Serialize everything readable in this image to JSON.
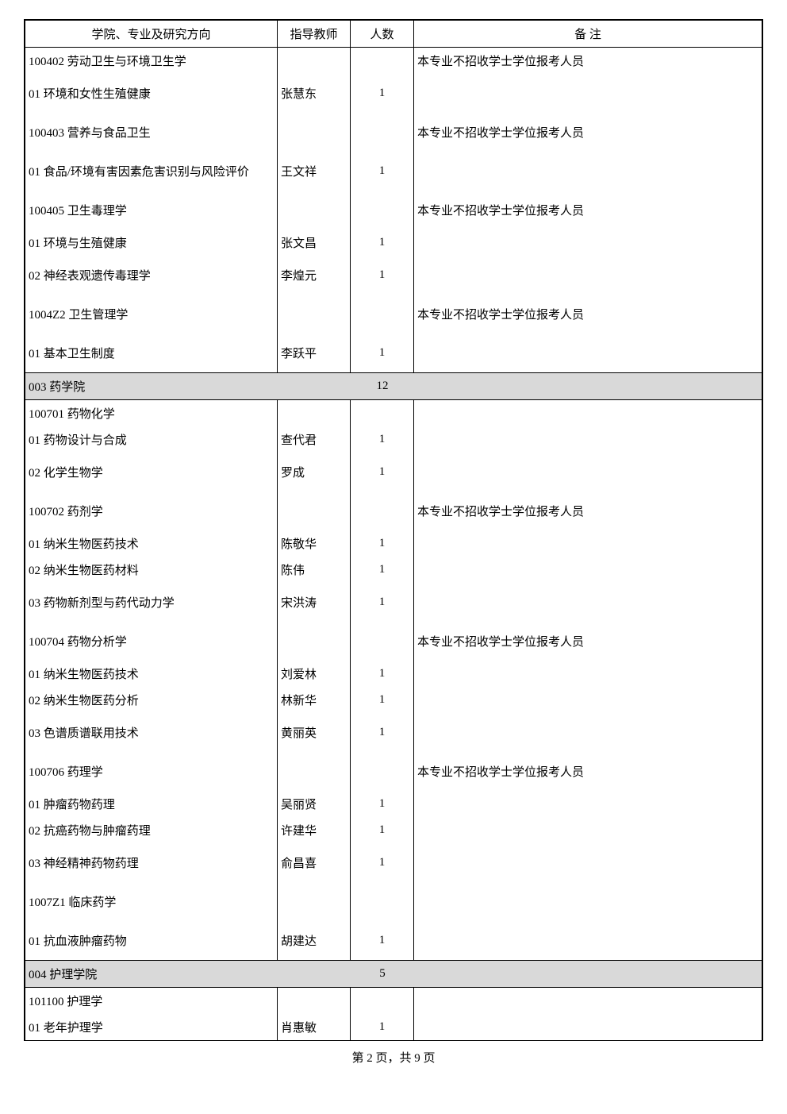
{
  "header": {
    "col1": "学院、专业及研究方向",
    "col2": "指导教师",
    "col3": "人数",
    "col4": "备 注"
  },
  "block1": {
    "subject": "100402 劳动卫生与环境卫生学",
    "note": "本专业不招收学士学位报考人员",
    "topic1": "01 环境和女性生殖健康",
    "advisor1": "张慧东",
    "count1": "1"
  },
  "block2": {
    "subject": "100403 营养与食品卫生",
    "note": "本专业不招收学士学位报考人员",
    "topic1": "01 食品/环境有害因素危害识别与风险评价",
    "advisor1": "王文祥",
    "count1": "1"
  },
  "block3": {
    "subject": "100405 卫生毒理学",
    "note": "本专业不招收学士学位报考人员",
    "topic1": "01 环境与生殖健康",
    "advisor1": "张文昌",
    "count1": "1",
    "topic2": "02 神经表观遗传毒理学",
    "advisor2": "李煌元",
    "count2": "1"
  },
  "block4": {
    "subject": "1004Z2  卫生管理学",
    "note": "本专业不招收学士学位报考人员",
    "topic1": "01 基本卫生制度",
    "advisor1": "李跃平",
    "count1": "1"
  },
  "section_a": {
    "title": "003 药学院",
    "count": "12"
  },
  "block5": {
    "subject": "100701 药物化学",
    "topic1": "01 药物设计与合成",
    "advisor1": "查代君",
    "count1": "1",
    "topic2": "02 化学生物学",
    "advisor2": "罗成",
    "count2": "1"
  },
  "block6": {
    "subject": "100702 药剂学",
    "note": "本专业不招收学士学位报考人员",
    "topic1": "01 纳米生物医药技术",
    "advisor1": "陈敬华",
    "count1": "1",
    "topic2": "02 纳米生物医药材料",
    "advisor2": "陈伟",
    "count2": "1",
    "topic3": "03 药物新剂型与药代动力学",
    "advisor3": "宋洪涛",
    "count3": "1"
  },
  "block7": {
    "subject": "100704 药物分析学",
    "note": "本专业不招收学士学位报考人员",
    "topic1": "01 纳米生物医药技术",
    "advisor1": "刘爱林",
    "count1": "1",
    "topic2": "02 纳米生物医药分析",
    "advisor2": "林新华",
    "count2": "1",
    "topic3": "03 色谱质谱联用技术",
    "advisor3": "黄丽英",
    "count3": "1"
  },
  "block8": {
    "subject": "100706 药理学",
    "note": "本专业不招收学士学位报考人员",
    "topic1": "01 肿瘤药物药理",
    "advisor1": "吴丽贤",
    "count1": "1",
    "topic2": "02 抗癌药物与肿瘤药理",
    "advisor2": "许建华",
    "count2": "1",
    "topic3": "03 神经精神药物药理",
    "advisor3": "俞昌喜",
    "count3": "1"
  },
  "block9": {
    "subject": "1007Z1 临床药学",
    "topic1": "01 抗血液肿瘤药物",
    "advisor1": "胡建达",
    "count1": "1"
  },
  "section_b": {
    "title": "004 护理学院",
    "count": "5"
  },
  "block10": {
    "subject": "101100 护理学",
    "topic1": "01 老年护理学",
    "advisor1": "肖惠敏",
    "count1": "1"
  },
  "footer": "第 2 页，共 9 页"
}
